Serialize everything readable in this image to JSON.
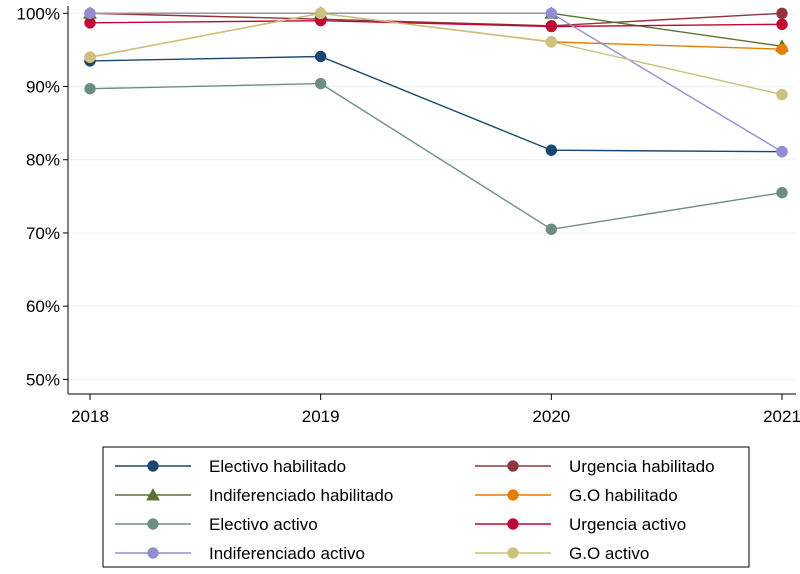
{
  "chart_data": {
    "type": "line",
    "title": "",
    "xlabel": "",
    "ylabel": "",
    "x": [
      2018,
      2019,
      2020,
      2021
    ],
    "x_ticks": [
      "2018",
      "2019",
      "2020",
      "2021"
    ],
    "ylim": [
      48,
      101
    ],
    "y_ticks": [
      50,
      60,
      70,
      80,
      90,
      100
    ],
    "y_tick_labels": [
      "50%",
      "60%",
      "70%",
      "80%",
      "90%",
      "100%"
    ],
    "grid": true,
    "legend_placement": "bottom",
    "series": [
      {
        "name": "Electivo habilitado",
        "color": "#1a476f",
        "marker": "circle",
        "values": [
          93.5,
          94.1,
          81.3,
          81.1
        ]
      },
      {
        "name": "Urgencia habilitado",
        "color": "#90353b",
        "marker": "circle",
        "values": [
          100,
          99.2,
          98.3,
          100
        ]
      },
      {
        "name": "Indiferenciado habilitado",
        "color": "#55752f",
        "marker": "triangle",
        "values": [
          100,
          100,
          100,
          95.5
        ]
      },
      {
        "name": "G.O habilitado",
        "color": "#e37e00",
        "marker": "circle",
        "values": [
          94,
          100,
          96.1,
          95.1
        ]
      },
      {
        "name": "Electivo activo",
        "color": "#6e8e84",
        "marker": "circle",
        "values": [
          89.7,
          90.4,
          70.5,
          75.5
        ]
      },
      {
        "name": "Urgencia activo",
        "color": "#c10534",
        "marker": "circle",
        "values": [
          98.7,
          99,
          98.2,
          98.5
        ]
      },
      {
        "name": "Indiferenciado activo",
        "color": "#938dd2",
        "marker": "circle",
        "values": [
          100,
          100,
          100,
          81.1
        ]
      },
      {
        "name": "G.O activo",
        "color": "#cac27e",
        "marker": "circle",
        "values": [
          94,
          100,
          96.1,
          88.9
        ]
      }
    ]
  }
}
